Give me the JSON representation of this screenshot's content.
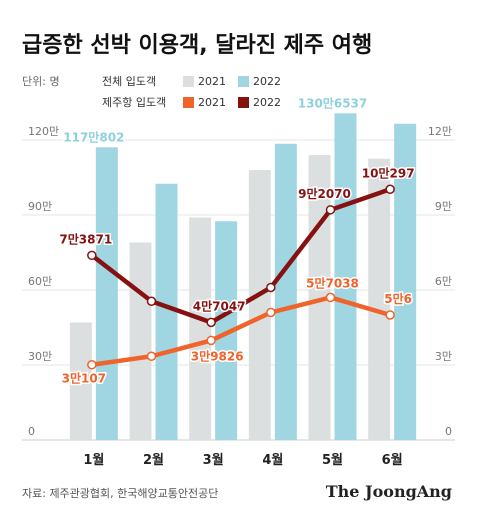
{
  "title": "급증한 선박 이용객, 달라진 제주 여행",
  "unit_label": "단위: 명",
  "legend": {
    "total_label": "전체 입도객",
    "jeju_label": "제주항 입도객",
    "y2021": "2021",
    "y2022": "2022"
  },
  "colors": {
    "total_2021": "#dcdfe0",
    "total_2022": "#9fd6e1",
    "jeju_2021": "#f0632a",
    "jeju_2022": "#861111",
    "total_label": "#8fd0df"
  },
  "source": "자료: 제주관광협회, 한국해양교통안전공단",
  "brand": "The JoongAng",
  "chart_data": {
    "type": "bar+line",
    "categories": [
      "1월",
      "2월",
      "3월",
      "4월",
      "5월",
      "6월"
    ],
    "left_axis": {
      "ylim": [
        0,
        1200000
      ],
      "ticks": [
        0,
        300000,
        600000,
        900000,
        1200000
      ],
      "tick_labels": [
        "0",
        "30만",
        "60만",
        "90만",
        "120만"
      ]
    },
    "right_axis": {
      "ylim": [
        0,
        120000
      ],
      "ticks": [
        0,
        30000,
        60000,
        90000,
        120000
      ],
      "tick_labels": [
        "0",
        "3만",
        "6만",
        "9만",
        "12만"
      ]
    },
    "bar_series": [
      {
        "name": "2021",
        "group": "전체 입도객",
        "values": [
          470000,
          790000,
          890000,
          1080000,
          1140000,
          1125000
        ]
      },
      {
        "name": "2022",
        "group": "전체 입도객",
        "values": [
          1170802,
          1025000,
          875000,
          1185000,
          1306537,
          1265000
        ],
        "labels": {
          "0": "117만802",
          "4": "130만6537"
        }
      }
    ],
    "line_series": [
      {
        "name": "2021",
        "group": "제주항 입도객",
        "values": [
          30107,
          33500,
          39826,
          51000,
          57038,
          50006
        ],
        "labels": {
          "0": "3만107",
          "2": "3만9826",
          "4": "5만7038",
          "5": "5만6"
        }
      },
      {
        "name": "2022",
        "group": "제주항 입도객",
        "values": [
          73871,
          55500,
          47047,
          61000,
          92070,
          100297
        ],
        "labels": {
          "0": "7만3871",
          "2": "4만7047",
          "4": "9만2070",
          "5": "10만297"
        }
      }
    ]
  }
}
